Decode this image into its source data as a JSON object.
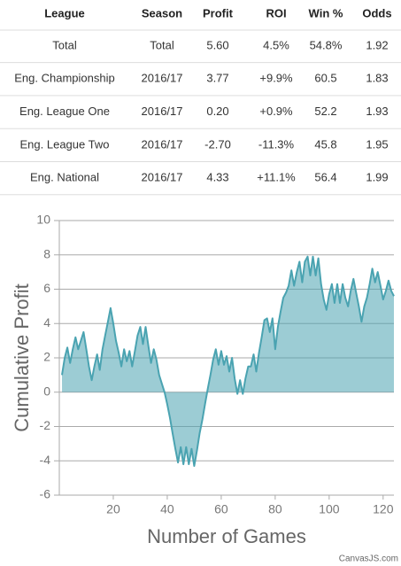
{
  "table": {
    "columns": [
      "League",
      "Season",
      "Profit",
      "ROI",
      "Win %",
      "Odds"
    ],
    "rows": [
      [
        "Total",
        "Total",
        "5.60",
        "4.5%",
        "54.8%",
        "1.92"
      ],
      [
        "Eng. Championship",
        "2016/17",
        "3.77",
        "+9.9%",
        "60.5",
        "1.83"
      ],
      [
        "Eng. League One",
        "2016/17",
        "0.20",
        "+0.9%",
        "52.2",
        "1.93"
      ],
      [
        "Eng. League Two",
        "2016/17",
        "-2.70",
        "-11.3%",
        "45.8",
        "1.95"
      ],
      [
        "Eng. National",
        "2016/17",
        "4.33",
        "+11.1%",
        "56.4",
        "1.99"
      ]
    ]
  },
  "chart_data": {
    "type": "area",
    "x_label": "Number of Games",
    "y_label": "Cumulative Profit",
    "credit": "CanvasJS.com",
    "xlim": [
      0,
      124
    ],
    "xticks": [
      20,
      40,
      60,
      80,
      100,
      120
    ],
    "ylim": [
      -6,
      10
    ],
    "yticks": [
      -6,
      -4,
      -2,
      0,
      2,
      4,
      6,
      8,
      10
    ],
    "grid": true,
    "x": [
      1,
      2,
      3,
      4,
      5,
      6,
      7,
      8,
      9,
      10,
      11,
      12,
      13,
      14,
      15,
      16,
      17,
      18,
      19,
      20,
      21,
      22,
      23,
      24,
      25,
      26,
      27,
      28,
      29,
      30,
      31,
      32,
      33,
      34,
      35,
      36,
      37,
      38,
      39,
      40,
      41,
      42,
      43,
      44,
      45,
      46,
      47,
      48,
      49,
      50,
      51,
      52,
      53,
      54,
      55,
      56,
      57,
      58,
      59,
      60,
      61,
      62,
      63,
      64,
      65,
      66,
      67,
      68,
      69,
      70,
      71,
      72,
      73,
      74,
      75,
      76,
      77,
      78,
      79,
      80,
      81,
      82,
      83,
      84,
      85,
      86,
      87,
      88,
      89,
      90,
      91,
      92,
      93,
      94,
      95,
      96,
      97,
      98,
      99,
      100,
      101,
      102,
      103,
      104,
      105,
      106,
      107,
      108,
      109,
      110,
      111,
      112,
      113,
      114,
      115,
      116,
      117,
      118,
      119,
      120,
      121,
      122,
      123,
      124
    ],
    "series": [
      {
        "color": "#4aa3b1",
        "values": [
          1.0,
          2.0,
          2.6,
          1.7,
          2.5,
          3.2,
          2.5,
          3.0,
          3.5,
          2.5,
          1.5,
          0.7,
          1.5,
          2.2,
          1.3,
          2.5,
          3.3,
          4.1,
          4.9,
          4.0,
          3.0,
          2.3,
          1.5,
          2.5,
          1.8,
          2.4,
          1.5,
          2.4,
          3.3,
          3.8,
          2.8,
          3.8,
          2.7,
          1.7,
          2.5,
          1.9,
          1.0,
          0.5,
          0.0,
          -0.7,
          -1.5,
          -2.4,
          -3.3,
          -4.1,
          -3.2,
          -4.2,
          -3.2,
          -4.2,
          -3.3,
          -4.3,
          -3.4,
          -2.4,
          -1.6,
          -0.7,
          0.2,
          1.0,
          1.9,
          2.5,
          1.6,
          2.4,
          1.6,
          2.1,
          1.2,
          2.0,
          0.8,
          -0.1,
          0.7,
          -0.1,
          0.8,
          1.5,
          1.5,
          2.2,
          1.2,
          2.3,
          3.2,
          4.2,
          4.3,
          3.5,
          4.3,
          2.5,
          3.8,
          4.7,
          5.5,
          5.8,
          6.2,
          7.1,
          6.2,
          7.0,
          7.6,
          6.4,
          7.6,
          7.9,
          6.8,
          7.9,
          6.8,
          7.8,
          6.3,
          5.4,
          4.8,
          5.7,
          6.3,
          5.2,
          6.3,
          5.2,
          6.3,
          5.5,
          5.0,
          5.9,
          6.6,
          5.8,
          5.0,
          4.1,
          5.0,
          5.5,
          6.3,
          7.2,
          6.4,
          7.0,
          6.2,
          5.4,
          5.9,
          6.5,
          5.9,
          5.6
        ]
      }
    ]
  }
}
